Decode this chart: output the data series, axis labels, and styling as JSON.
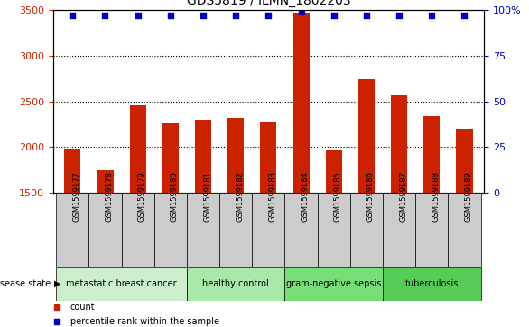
{
  "title": "GDS5819 / ILMN_1802203",
  "samples": [
    "GSM1599177",
    "GSM1599178",
    "GSM1599179",
    "GSM1599180",
    "GSM1599181",
    "GSM1599182",
    "GSM1599183",
    "GSM1599184",
    "GSM1599185",
    "GSM1599186",
    "GSM1599187",
    "GSM1599188",
    "GSM1599189"
  ],
  "counts": [
    1985,
    1745,
    2455,
    2255,
    2295,
    2315,
    2280,
    3470,
    1975,
    2745,
    2560,
    2335,
    2205
  ],
  "percentile_ranks": [
    97,
    97,
    97,
    97,
    97,
    97,
    97,
    99,
    97,
    97,
    97,
    97,
    97
  ],
  "ylim_left": [
    1500,
    3500
  ],
  "ylim_right": [
    0,
    100
  ],
  "yticks_left": [
    1500,
    2000,
    2500,
    3000,
    3500
  ],
  "yticks_right": [
    0,
    25,
    50,
    75,
    100
  ],
  "bar_color": "#cc2200",
  "dot_color": "#0000cc",
  "groups": [
    {
      "label": "metastatic breast cancer",
      "start": 0,
      "end": 3,
      "color": "#cceecc"
    },
    {
      "label": "healthy control",
      "start": 4,
      "end": 6,
      "color": "#aae8aa"
    },
    {
      "label": "gram-negative sepsis",
      "start": 7,
      "end": 9,
      "color": "#77dd77"
    },
    {
      "label": "tuberculosis",
      "start": 10,
      "end": 12,
      "color": "#55cc55"
    }
  ],
  "sample_box_color": "#cccccc",
  "disease_state_label": "disease state",
  "legend_bar_label": "count",
  "legend_dot_label": "percentile rank within the sample",
  "background_color": "#ffffff",
  "plot_bg_color": "#ffffff",
  "tick_label_color_left": "#cc2200",
  "tick_label_color_right": "#0000cc",
  "grid_yticks": [
    2000,
    2500,
    3000
  ]
}
